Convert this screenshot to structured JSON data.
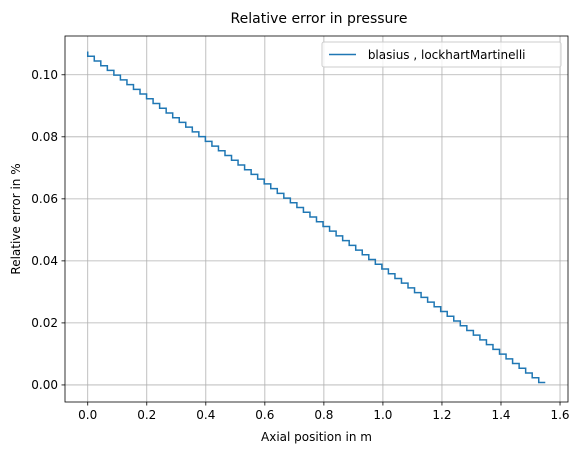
{
  "chart_data": {
    "type": "line",
    "title": "Relative error in pressure",
    "xlabel": "Axial position in m",
    "ylabel": "Relative error in %",
    "xlim": [
      -0.077,
      1.627
    ],
    "ylim": [
      -0.0055,
      0.1125
    ],
    "xticks": [
      0.0,
      0.2,
      0.4,
      0.6,
      0.8,
      1.0,
      1.2,
      1.4,
      1.6
    ],
    "xtick_labels": [
      "0.0",
      "0.2",
      "0.4",
      "0.6",
      "0.8",
      "1.0",
      "1.2",
      "1.4",
      "1.6"
    ],
    "yticks": [
      0.0,
      0.02,
      0.04,
      0.06,
      0.08,
      0.1
    ],
    "ytick_labels": [
      "0.00",
      "0.02",
      "0.04",
      "0.06",
      "0.08",
      "0.10"
    ],
    "grid": true,
    "legend_position": "top-right",
    "step_style": "staircase",
    "series": [
      {
        "name": " blasius , lockhartMartinelli",
        "color": "#1f77b4",
        "x_start": 0.0,
        "x_end": 1.55,
        "y_start": 0.1075,
        "y_end": 0.0008,
        "steps": 70
      }
    ]
  }
}
